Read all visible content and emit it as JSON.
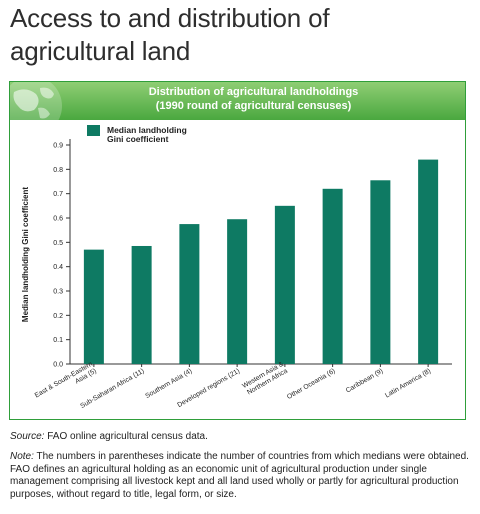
{
  "page": {
    "title_lines": [
      "Access to and distribution of",
      "agricultural land"
    ]
  },
  "panel": {
    "header_lines": [
      "Distribution of agricultural landholdings",
      "(1990 round of agricultural censuses)"
    ],
    "icon": "globe-icon",
    "border_color": "#2f9e3a"
  },
  "chart_data": {
    "type": "bar",
    "ylabel": "Median landholding Gini coefficient",
    "xlabel": "",
    "ylim": [
      0,
      0.9
    ],
    "yticks": [
      0.0,
      0.1,
      0.2,
      0.3,
      0.4,
      0.5,
      0.6,
      0.7,
      0.8,
      0.9
    ],
    "ytick_labels": [
      "0.0",
      "0.1",
      "0.2",
      "0.3",
      "0.4",
      "0.5",
      "0.6",
      "0.7",
      "0.8",
      "0.9"
    ],
    "grid": false,
    "legend_position": "top-left",
    "bar_color": "#0e7a63",
    "categories": [
      [
        "East & South-Eastern",
        "Asia (5)"
      ],
      [
        "Sub-Saharan Africa (11)"
      ],
      [
        "Southern Asia (4)"
      ],
      [
        "Developed regions (21)"
      ],
      [
        "Western Asia &",
        "Northern Africa"
      ],
      [
        "Other Oceania (6)"
      ],
      [
        "Caribbean (9)"
      ],
      [
        "Latin America (8)"
      ]
    ],
    "series": [
      {
        "name": "Median landholding Gini coefficient",
        "legend_lines": [
          "Median landholding",
          "Gini coefficient"
        ],
        "values": [
          0.47,
          0.485,
          0.575,
          0.595,
          0.65,
          0.72,
          0.755,
          0.84
        ]
      }
    ]
  },
  "footer": {
    "source_label": "Source:",
    "source_text": " FAO online agricultural census data.",
    "note_label": "Note:",
    "note_text": " The numbers in parentheses indicate the number of countries from which medians were obtained. FAO defines an agricultural holding as an economic unit of agricultural production under single management comprising all livestock kept and all land used wholly or partly for agricultural production purposes, without regard to title, legal form, or size."
  }
}
